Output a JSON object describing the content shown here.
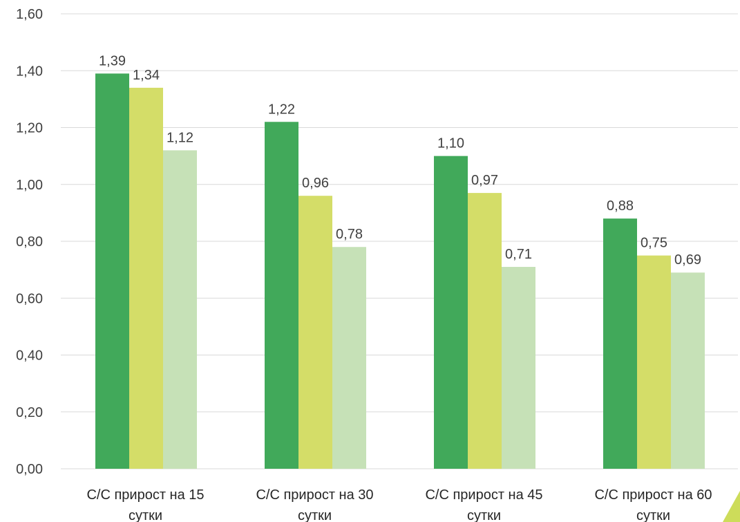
{
  "chart_data": {
    "type": "bar",
    "categories": [
      [
        "С/С прирост на 15",
        "сутки"
      ],
      [
        "С/С прирост на 30",
        "сутки"
      ],
      [
        "С/С прирост на 45",
        "сутки"
      ],
      [
        "С/С прирост на 60",
        "сутки"
      ]
    ],
    "series": [
      {
        "values": [
          1.39,
          1.22,
          1.1,
          0.88
        ],
        "labels": [
          "1,39",
          "1,22",
          "1,10",
          "0,88"
        ],
        "color": "#41a95a"
      },
      {
        "values": [
          1.34,
          0.96,
          0.97,
          0.75
        ],
        "labels": [
          "1,34",
          "0,96",
          "0,97",
          "0,75"
        ],
        "color": "#d4dd68"
      },
      {
        "values": [
          1.12,
          0.78,
          0.71,
          0.69
        ],
        "labels": [
          "1,12",
          "0,78",
          "0,71",
          "0,69"
        ],
        "color": "#c6e1b7"
      }
    ],
    "yticks": [
      "0,00",
      "0,20",
      "0,40",
      "0,60",
      "0,80",
      "1,00",
      "1,20",
      "1,40",
      "1,60"
    ],
    "ylim": [
      0,
      1.6
    ],
    "grid": true,
    "gridline_color": "#d9d9d9"
  }
}
